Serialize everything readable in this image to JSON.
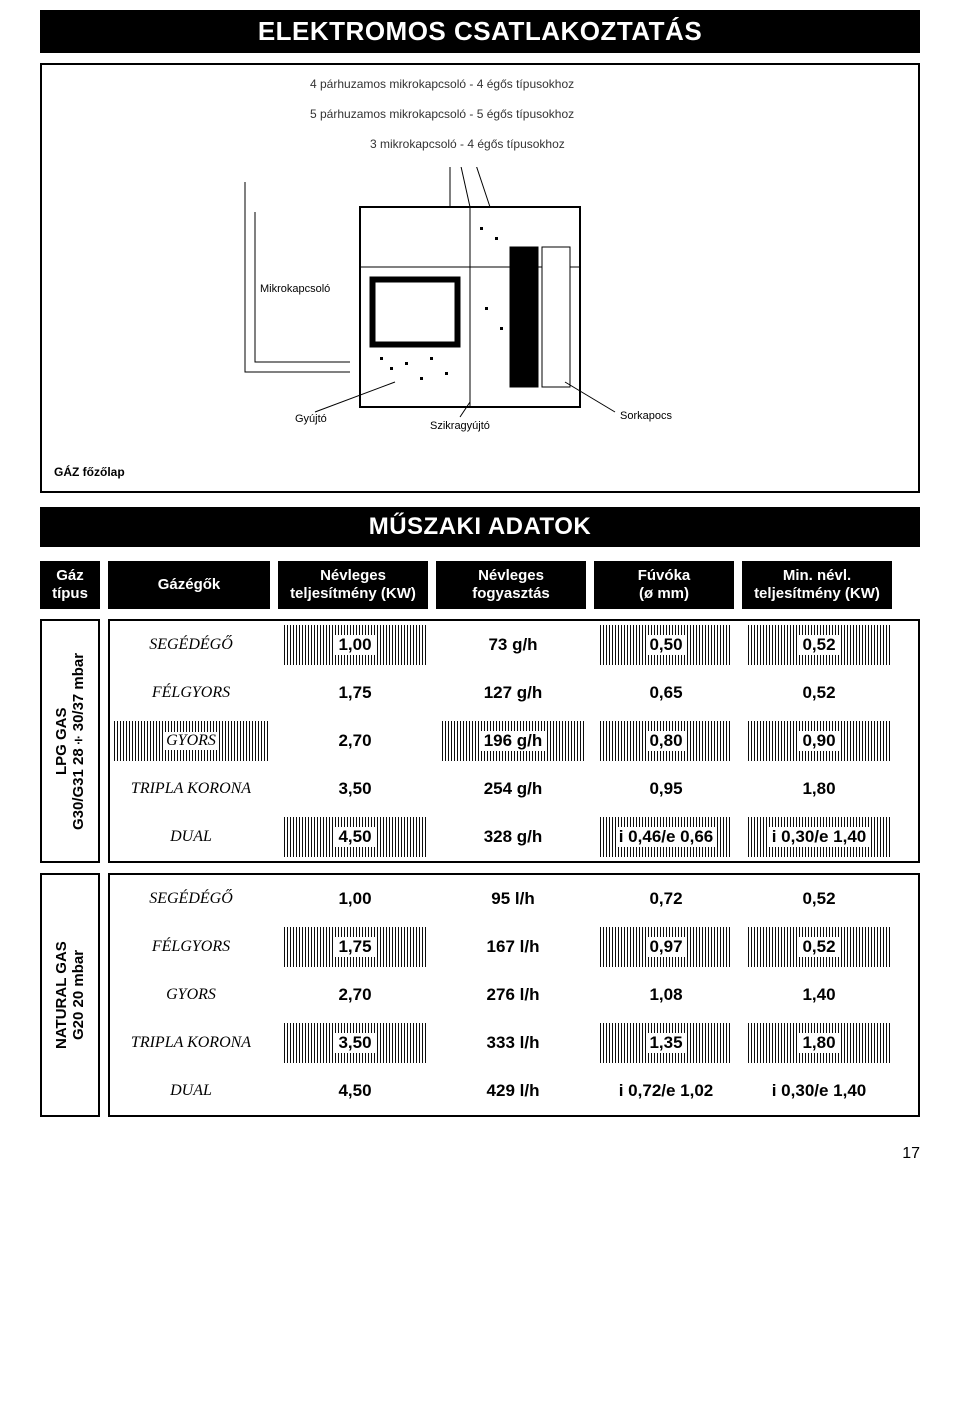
{
  "titles": {
    "main": "ELEKTROMOS CSATLAKOZTATÁS",
    "tech": "MŰSZAKI ADATOK"
  },
  "diagram": {
    "labels": {
      "micro4": "4 párhuzamos mikrokapcsoló - 4 égős típusokhoz",
      "micro5": "5 párhuzamos mikrokapcsoló - 5 égős típusokhoz",
      "micro3": "3 mikrokapcsoló - 4 égős típusokhoz",
      "microswitch": "Mikrokapcsoló",
      "igniter": "Gyújtó",
      "spark_igniter": "Szikragyújtó",
      "terminal": "Sorkapocs"
    },
    "left_label": "GÁZ főzőlap"
  },
  "headers": {
    "gas_type": [
      "Gáz",
      "típus"
    ],
    "burners": [
      "Gázégők"
    ],
    "rated_power": [
      "Névleges",
      "teljesítmény (KW)"
    ],
    "rated_cons": [
      "Névleges",
      "fogyasztás"
    ],
    "nozzle": [
      "Fúvóka",
      "(ø mm)"
    ],
    "min_rated": [
      "Min. névl.",
      "teljesítmény (KW)"
    ]
  },
  "widths": {
    "side": 60,
    "burner": 162,
    "kw": 150,
    "cons": 150,
    "nozzle": 140,
    "min": 150
  },
  "blocks": [
    {
      "side_label": "LPG GAS\nG30/G31 28÷30/37 mbar",
      "rows": [
        {
          "burner": "SEGÉDÉGŐ",
          "kw": "1,00",
          "cons": "73 g/h",
          "nozzle": "0,50",
          "min": "0,52",
          "hatch": [
            false,
            true,
            false,
            true,
            true
          ]
        },
        {
          "burner": "FÉLGYORS",
          "kw": "1,75",
          "cons": "127 g/h",
          "nozzle": "0,65",
          "min": "0,52",
          "hatch": [
            false,
            false,
            false,
            false,
            false
          ]
        },
        {
          "burner": "GYORS",
          "kw": "2,70",
          "cons": "196 g/h",
          "nozzle": "0,80",
          "min": "0,90",
          "hatch": [
            true,
            false,
            true,
            true,
            true
          ]
        },
        {
          "burner": "TRIPLA KORONA",
          "kw": "3,50",
          "cons": "254 g/h",
          "nozzle": "0,95",
          "min": "1,80",
          "hatch": [
            false,
            false,
            false,
            false,
            false
          ]
        },
        {
          "burner": "DUAL",
          "kw": "4,50",
          "cons": "328 g/h",
          "nozzle": "i 0,46/e 0,66",
          "min": "i 0,30/e 1,40",
          "hatch": [
            false,
            true,
            false,
            true,
            true
          ]
        }
      ]
    },
    {
      "side_label": "NATURAL GAS\nG20 20 mbar",
      "rows": [
        {
          "burner": "SEGÉDÉGŐ",
          "kw": "1,00",
          "cons": "95 l/h",
          "nozzle": "0,72",
          "min": "0,52",
          "hatch": [
            false,
            false,
            false,
            false,
            false
          ]
        },
        {
          "burner": "FÉLGYORS",
          "kw": "1,75",
          "cons": "167 l/h",
          "nozzle": "0,97",
          "min": "0,52",
          "hatch": [
            false,
            true,
            false,
            true,
            true
          ]
        },
        {
          "burner": "GYORS",
          "kw": "2,70",
          "cons": "276 l/h",
          "nozzle": "1,08",
          "min": "1,40",
          "hatch": [
            false,
            false,
            false,
            false,
            false
          ]
        },
        {
          "burner": "TRIPLA KORONA",
          "kw": "3,50",
          "cons": "333 l/h",
          "nozzle": "1,35",
          "min": "1,80",
          "hatch": [
            false,
            true,
            false,
            true,
            true
          ]
        },
        {
          "burner": "DUAL",
          "kw": "4,50",
          "cons": "429 l/h",
          "nozzle": "i 0,72/e 1,02",
          "min": "i 0,30/e 1,40",
          "hatch": [
            false,
            false,
            false,
            false,
            false
          ]
        }
      ]
    }
  ],
  "page_number": "17"
}
